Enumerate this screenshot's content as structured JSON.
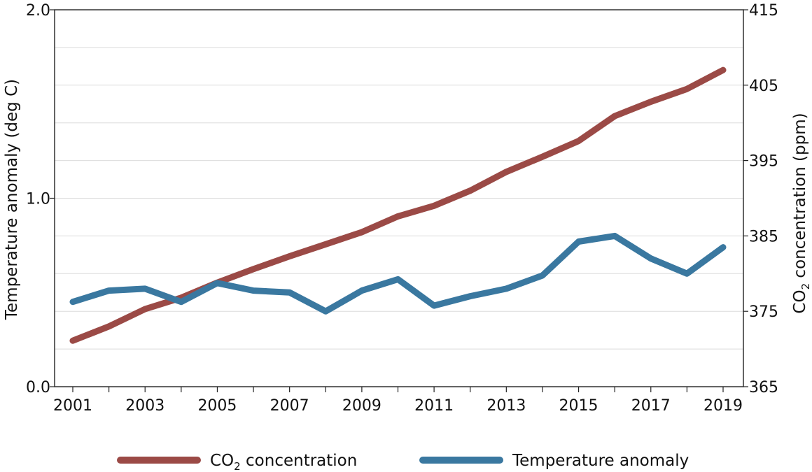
{
  "chart_data": {
    "type": "line",
    "x": [
      2001,
      2002,
      2003,
      2004,
      2005,
      2006,
      2007,
      2008,
      2009,
      2010,
      2011,
      2012,
      2013,
      2014,
      2015,
      2016,
      2017,
      2018,
      2019
    ],
    "x_tick_labels": [
      "2001",
      "2003",
      "2005",
      "2007",
      "2009",
      "2011",
      "2013",
      "2015",
      "2017",
      "2019"
    ],
    "left_axis": {
      "label": "Temperature anomaly (deg C)",
      "ylim": [
        0.0,
        2.0
      ],
      "tick_labels": [
        "0.0",
        "1.0",
        "2.0"
      ]
    },
    "right_axis": {
      "label_main": "CO",
      "label_sub": "2",
      "label_rest": " concentration (ppm)",
      "ylim": [
        365,
        415
      ],
      "tick_labels": [
        "365",
        "375",
        "385",
        "395",
        "405",
        "415"
      ]
    },
    "grid": true,
    "legend_placement": "bottom",
    "series": [
      {
        "name_main": "CO",
        "name_sub": "2",
        "name_rest": " concentration",
        "axis": "right",
        "color": "#9b4a46",
        "values": [
          371.1,
          373.0,
          375.3,
          376.8,
          378.8,
          380.6,
          382.3,
          383.9,
          385.5,
          387.6,
          389.0,
          391.0,
          393.5,
          395.5,
          397.6,
          400.9,
          402.8,
          404.5,
          407.0
        ]
      },
      {
        "name": "Temperature anomaly",
        "axis": "left",
        "color": "#3a78a0",
        "values": [
          0.45,
          0.51,
          0.52,
          0.45,
          0.55,
          0.51,
          0.5,
          0.4,
          0.51,
          0.57,
          0.43,
          0.48,
          0.52,
          0.59,
          0.77,
          0.8,
          0.68,
          0.6,
          0.74
        ]
      }
    ]
  }
}
